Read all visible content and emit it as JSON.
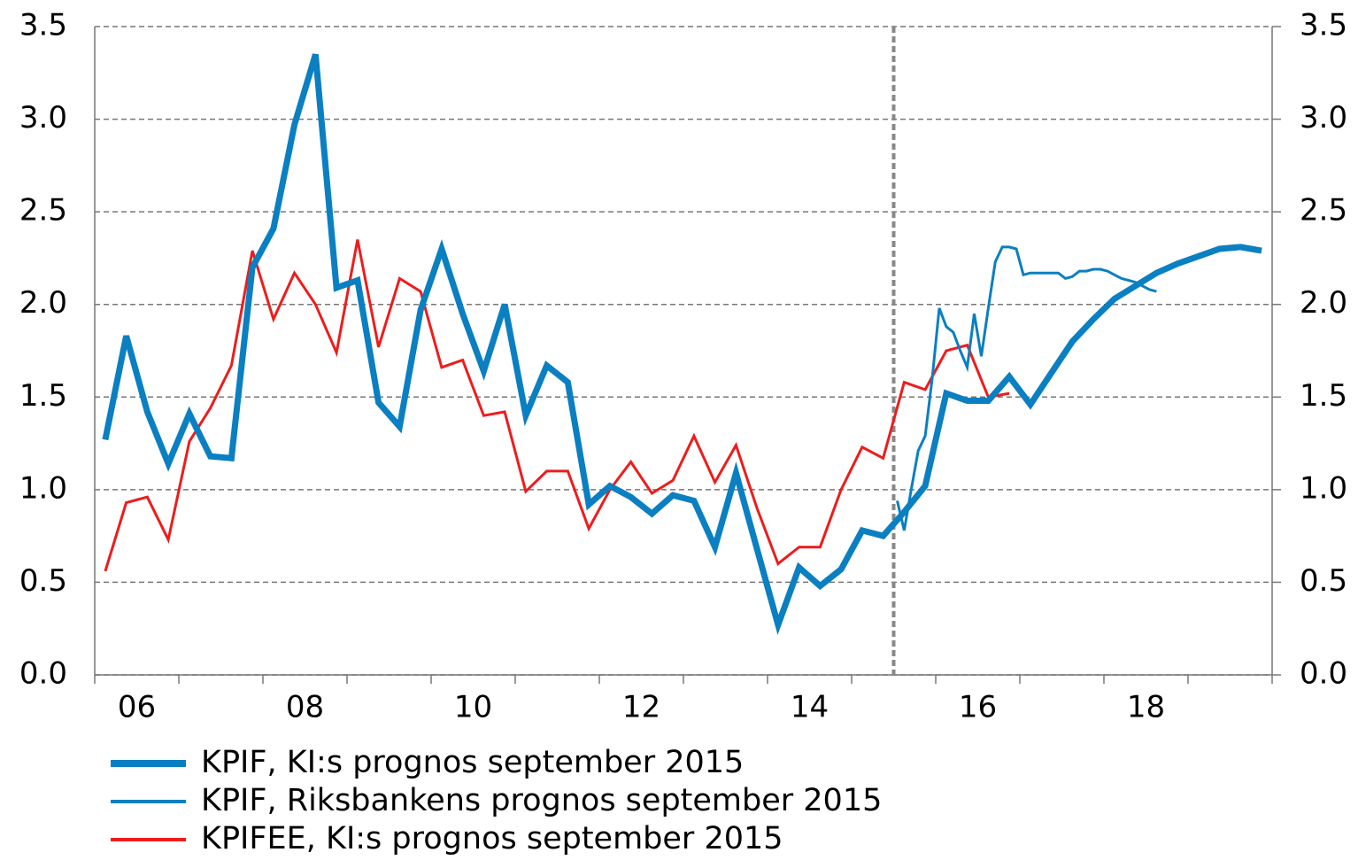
{
  "chart_data": {
    "type": "line",
    "x": [
      2006.125,
      2006.375,
      2006.625,
      2006.875,
      2007.125,
      2007.375,
      2007.625,
      2007.875,
      2008.125,
      2008.375,
      2008.625,
      2008.875,
      2009.125,
      2009.375,
      2009.625,
      2009.875,
      2010.125,
      2010.375,
      2010.625,
      2010.875,
      2011.125,
      2011.375,
      2011.625,
      2011.875,
      2012.125,
      2012.375,
      2012.625,
      2012.875,
      2013.125,
      2013.375,
      2013.625,
      2013.875,
      2014.125,
      2014.375,
      2014.625,
      2014.875,
      2015.125,
      2015.375,
      2015.625,
      2015.875,
      2016.125,
      2016.375,
      2016.625,
      2016.875,
      2017.125,
      2017.375,
      2017.625,
      2017.875,
      2018.125,
      2018.375,
      2018.625,
      2018.875,
      2019.125,
      2019.375,
      2019.625,
      2019.875
    ],
    "series": [
      {
        "name": "KPIF, KI:s prognos september 2015",
        "color": "#0a7fc1",
        "width": 7,
        "values": [
          1.27,
          1.83,
          1.42,
          1.14,
          1.41,
          1.18,
          1.17,
          2.2,
          2.41,
          2.97,
          3.35,
          2.09,
          2.13,
          1.47,
          1.34,
          1.97,
          2.3,
          1.95,
          1.64,
          2.0,
          1.4,
          1.67,
          1.58,
          0.92,
          1.02,
          0.96,
          0.87,
          0.97,
          0.94,
          0.69,
          1.09,
          0.68,
          0.27,
          0.58,
          0.48,
          0.57,
          0.78,
          0.75,
          0.88,
          1.02,
          1.52,
          1.48,
          1.48,
          1.61,
          1.46,
          1.63,
          1.8,
          1.92,
          2.03,
          2.1,
          2.17,
          2.22,
          2.26,
          2.3,
          2.31,
          2.29
        ]
      },
      {
        "name": "KPIF, Riksbankens prognos september 2015",
        "color": "#0a7fc1",
        "width": 3,
        "x": [
          2015.542,
          2015.625,
          2015.708,
          2015.792,
          2015.875,
          2015.958,
          2016.042,
          2016.125,
          2016.208,
          2016.292,
          2016.375,
          2016.458,
          2016.542,
          2016.625,
          2016.708,
          2016.792,
          2016.875,
          2016.958,
          2017.042,
          2017.125,
          2017.208,
          2017.292,
          2017.375,
          2017.458,
          2017.542,
          2017.625,
          2017.708,
          2017.792,
          2017.875,
          2017.958,
          2018.042,
          2018.125,
          2018.208,
          2018.292,
          2018.375,
          2018.458,
          2018.542,
          2018.625
        ],
        "values": [
          0.94,
          0.78,
          1.0,
          1.21,
          1.29,
          1.6,
          1.98,
          1.88,
          1.85,
          1.75,
          1.66,
          1.95,
          1.72,
          1.98,
          2.23,
          2.31,
          2.31,
          2.3,
          2.16,
          2.17,
          2.17,
          2.17,
          2.17,
          2.17,
          2.14,
          2.15,
          2.18,
          2.18,
          2.19,
          2.19,
          2.18,
          2.16,
          2.14,
          2.13,
          2.12,
          2.1,
          2.08,
          2.07
        ]
      },
      {
        "name": "KPIFEE, KI:s prognos september 2015",
        "color": "#ee1c1c",
        "width": 3,
        "values": [
          0.56,
          0.93,
          0.96,
          0.73,
          1.26,
          1.44,
          1.67,
          2.29,
          1.92,
          2.17,
          2.0,
          1.74,
          2.35,
          1.77,
          2.14,
          2.07,
          1.66,
          1.7,
          1.4,
          1.42,
          0.99,
          1.1,
          1.1,
          0.79,
          1.0,
          1.15,
          0.98,
          1.05,
          1.29,
          1.04,
          1.24,
          0.9,
          0.6,
          0.69,
          0.69,
          1.0,
          1.23,
          1.17,
          1.58,
          1.54,
          1.75,
          1.78,
          1.5,
          1.52,
          null,
          null,
          null,
          null,
          null,
          null,
          null,
          null,
          null,
          null,
          null,
          null
        ]
      }
    ],
    "xlim": [
      2006,
      2020
    ],
    "xticks": [
      {
        "value": 2006.5,
        "label": "06"
      },
      {
        "value": 2008.5,
        "label": "08"
      },
      {
        "value": 2010.5,
        "label": "10"
      },
      {
        "value": 2012.5,
        "label": "12"
      },
      {
        "value": 2014.5,
        "label": "14"
      },
      {
        "value": 2016.5,
        "label": "16"
      },
      {
        "value": 2018.5,
        "label": "18"
      }
    ],
    "year_boundaries": [
      2006,
      2007,
      2008,
      2009,
      2010,
      2011,
      2012,
      2013,
      2014,
      2015,
      2016,
      2017,
      2018,
      2019,
      2020
    ],
    "forecast_start": 2015.5,
    "ylim": [
      0,
      3.5
    ],
    "yticks": [
      {
        "value": 0,
        "label": "0.0"
      },
      0.5,
      {
        "value": 1,
        "label": "1.0"
      },
      1.5,
      {
        "value": 2,
        "label": "2.0"
      },
      2.5,
      {
        "value": 3,
        "label": "3.0"
      },
      3.5
    ],
    "grid": true,
    "legend": "bottom"
  }
}
